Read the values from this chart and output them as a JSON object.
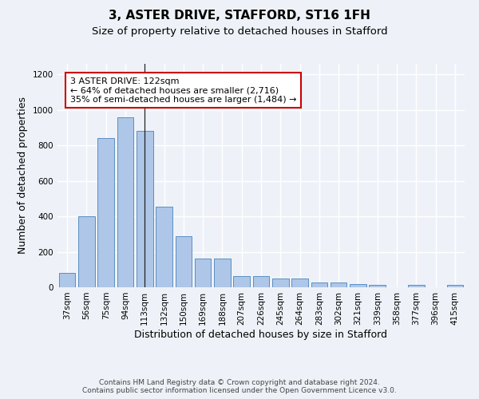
{
  "title": "3, ASTER DRIVE, STAFFORD, ST16 1FH",
  "subtitle": "Size of property relative to detached houses in Stafford",
  "xlabel": "Distribution of detached houses by size in Stafford",
  "ylabel": "Number of detached properties",
  "categories": [
    "37sqm",
    "56sqm",
    "75sqm",
    "94sqm",
    "113sqm",
    "132sqm",
    "150sqm",
    "169sqm",
    "188sqm",
    "207sqm",
    "226sqm",
    "245sqm",
    "264sqm",
    "283sqm",
    "302sqm",
    "321sqm",
    "339sqm",
    "358sqm",
    "377sqm",
    "396sqm",
    "415sqm"
  ],
  "values": [
    80,
    400,
    840,
    960,
    880,
    455,
    290,
    163,
    163,
    65,
    65,
    48,
    48,
    28,
    28,
    18,
    12,
    0,
    12,
    0,
    12
  ],
  "bar_color": "#aec6e8",
  "bar_edge_color": "#5a8fc2",
  "background_color": "#eef2f8",
  "grid_color": "#ffffff",
  "annotation_box_text": "3 ASTER DRIVE: 122sqm\n← 64% of detached houses are smaller (2,716)\n35% of semi-detached houses are larger (1,484) →",
  "annotation_box_color": "#cc0000",
  "marker_bar_index": 4,
  "ylim": [
    0,
    1260
  ],
  "yticks": [
    0,
    200,
    400,
    600,
    800,
    1000,
    1200
  ],
  "footnote": "Contains HM Land Registry data © Crown copyright and database right 2024.\nContains public sector information licensed under the Open Government Licence v3.0.",
  "title_fontsize": 11,
  "subtitle_fontsize": 9.5,
  "xlabel_fontsize": 9,
  "ylabel_fontsize": 9,
  "tick_fontsize": 7.5,
  "annotation_fontsize": 8,
  "footnote_fontsize": 6.5
}
